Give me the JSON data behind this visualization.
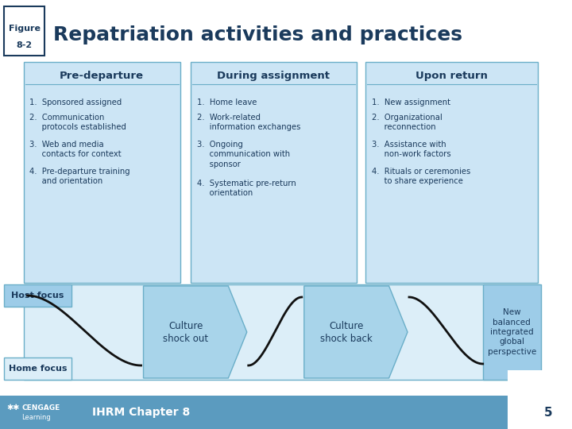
{
  "title": "Repatriation activities and practices",
  "bg_color": "#ffffff",
  "light_blue": "#cce5f5",
  "medium_blue": "#9dcce8",
  "dark_blue": "#1a3a5c",
  "border_blue": "#6aaec8",
  "arrow_blue": "#a8d4ea",
  "footer_blue": "#5b9bbf",
  "band_bg": "#dceef8",
  "columns": [
    {
      "header": "Pre-departure",
      "items": [
        "1.  Sponsored assigned",
        "2.  Communication\n     protocols established",
        "3.  Web and media\n     contacts for context",
        "4.  Pre-departure training\n     and orientation"
      ]
    },
    {
      "header": "During assignment",
      "items": [
        "1.  Home leave",
        "2.  Work-related\n     information exchanges",
        "3.  Ongoing\n     communication with\n     sponsor",
        "4.  Systematic pre-return\n     orientation"
      ]
    },
    {
      "header": "Upon return",
      "items": [
        "1.  New assignment",
        "2.  Organizational\n     reconnection",
        "3.  Assistance with\n     non-work factors",
        "4.  Rituals or ceremonies\n     to share experience"
      ]
    }
  ],
  "host_focus_label": "Host focus",
  "home_focus_label": "Home focus",
  "arrow1_label": "Culture\nshock out",
  "arrow2_label": "Culture\nshock back",
  "outcome_label": "New\nbalanced\nintegrated\nglobal\nperspective",
  "footer_chapter": "IHRM Chapter 8",
  "footer_page": "5"
}
